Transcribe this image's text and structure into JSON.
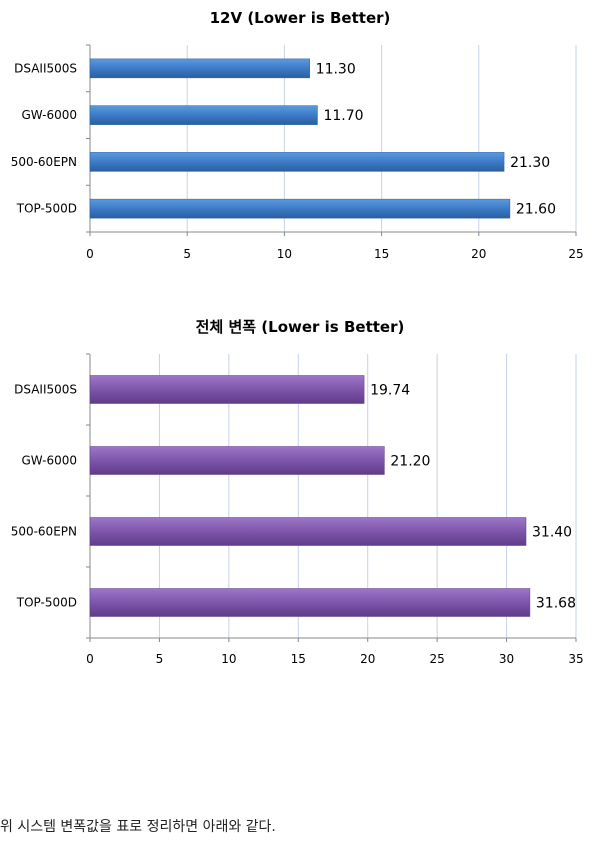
{
  "charts": [
    {
      "type": "bar",
      "orientation": "horizontal",
      "title": "12V (Lower is Better)",
      "categories": [
        "DSAII500S",
        "GW-6000",
        "500-60EPN",
        "TOP-500D"
      ],
      "values": [
        11.3,
        11.7,
        21.3,
        21.6
      ],
      "value_labels": [
        "11.30",
        "11.70",
        "21.30",
        "21.60"
      ],
      "xlim": [
        0,
        25
      ],
      "xticks": [
        "0",
        "5",
        "10",
        "15",
        "20",
        "25"
      ],
      "grid": true,
      "bar_color": "#3a78c4",
      "bar_color_light": "#5b9ae0",
      "bar_color_dark": "#2a5f9e"
    },
    {
      "type": "bar",
      "orientation": "horizontal",
      "title": "전체 변폭 (Lower is Better)",
      "categories": [
        "DSAII500S",
        "GW-6000",
        "500-60EPN",
        "TOP-500D"
      ],
      "values": [
        19.74,
        21.2,
        31.4,
        31.68
      ],
      "value_labels": [
        "19.74",
        "21.20",
        "31.40",
        "31.68"
      ],
      "xlim": [
        0,
        35
      ],
      "xticks": [
        "0",
        "5",
        "10",
        "15",
        "20",
        "25",
        "30",
        "35"
      ],
      "grid": true,
      "bar_color": "#7b52a8",
      "bar_color_light": "#9c76c8",
      "bar_color_dark": "#5e3c88"
    }
  ],
  "caption": "위 시스템 변폭값을 표로 정리하면 아래와 같다."
}
